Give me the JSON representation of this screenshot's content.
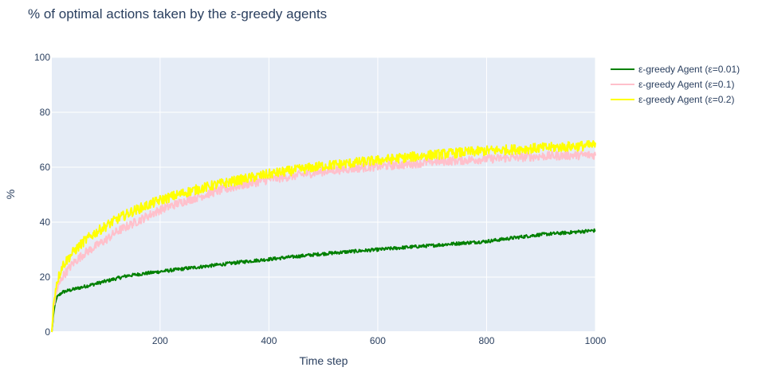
{
  "chart_data": {
    "type": "line",
    "title": "% of optimal actions taken by the ε-greedy agents",
    "xlabel": "Time step",
    "ylabel": "%",
    "xlim": [
      1,
      1000
    ],
    "ylim": [
      0,
      100
    ],
    "x_ticks": [
      200,
      400,
      600,
      800,
      1000
    ],
    "y_ticks": [
      0,
      20,
      40,
      60,
      80,
      100
    ],
    "grid": true,
    "legend_position": "top-right, outside plot",
    "plot_background": "#e5ecf6",
    "series": [
      {
        "name": "ε-greedy Agent (ε=0.01)",
        "color": "#008000",
        "noise": 0.6,
        "x": [
          1,
          5,
          10,
          20,
          40,
          60,
          80,
          100,
          120,
          140,
          160,
          200,
          250,
          300,
          350,
          400,
          450,
          500,
          550,
          600,
          650,
          700,
          750,
          800,
          850,
          900,
          950,
          1000
        ],
        "y": [
          0,
          8,
          12.5,
          14.5,
          15.5,
          16.5,
          17.5,
          18.5,
          19.5,
          20.5,
          21,
          22,
          23.2,
          24.3,
          25.5,
          26.5,
          27.5,
          28.5,
          29.3,
          30,
          30.8,
          31.5,
          32.3,
          33,
          34.3,
          35.5,
          36.2,
          37
        ]
      },
      {
        "name": "ε-greedy Agent (ε=0.1)",
        "color": "#ffc0cb",
        "noise": 1.6,
        "x": [
          1,
          5,
          10,
          20,
          40,
          60,
          80,
          100,
          120,
          150,
          200,
          250,
          300,
          350,
          400,
          450,
          500,
          550,
          600,
          650,
          700,
          750,
          800,
          850,
          900,
          950,
          1000
        ],
        "y": [
          0,
          10,
          15,
          20,
          25,
          28.5,
          31,
          33.5,
          36.5,
          39.5,
          44.5,
          48,
          51,
          53.5,
          55.5,
          57,
          58.5,
          59.5,
          60.3,
          61,
          62,
          62.5,
          63,
          63.5,
          64,
          64.3,
          64.5
        ]
      },
      {
        "name": "ε-greedy Agent (ε=0.2)",
        "color": "#ffff00",
        "noise": 1.8,
        "x": [
          1,
          5,
          10,
          20,
          40,
          60,
          80,
          100,
          120,
          150,
          200,
          250,
          300,
          350,
          400,
          450,
          500,
          550,
          600,
          650,
          700,
          750,
          800,
          850,
          900,
          950,
          1000
        ],
        "y": [
          0,
          12,
          18,
          24,
          29,
          33,
          36,
          38.5,
          41,
          44,
          48,
          51,
          53.5,
          55.5,
          57.5,
          59,
          60.5,
          61.5,
          62.5,
          63.5,
          64.5,
          65.3,
          66,
          66.5,
          67,
          67.5,
          68
        ]
      }
    ]
  }
}
